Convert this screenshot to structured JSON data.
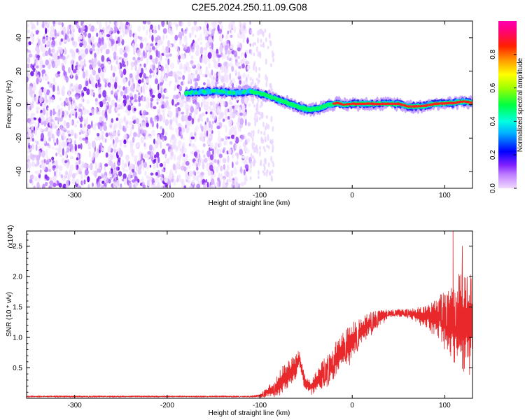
{
  "chart_data": [
    {
      "type": "heatmap",
      "title": "C2E5.2024.250.11.09.G08",
      "xlabel": "Height of straight line (km)",
      "ylabel": "Frequency (Hz)",
      "xlim": [
        -352,
        130
      ],
      "ylim": [
        -50,
        50
      ],
      "x_ticks": [
        "-300",
        "-200",
        "-100",
        "0",
        "100"
      ],
      "y_ticks": [
        "-40",
        "-20",
        "0",
        "20",
        "40"
      ],
      "colorbar": {
        "label": "Normalized spectral amplitude",
        "range": [
          0,
          1
        ],
        "ticks": [
          "0.0",
          "0.2",
          "0.4",
          "0.6",
          "0.8"
        ],
        "colors": [
          "#f0d8ff",
          "#9b30ff",
          "#0000ff",
          "#00e0ff",
          "#00ff40",
          "#c8ff00",
          "#ffcc00",
          "#ff4000",
          "#ff0080",
          "#ff00a0"
        ]
      },
      "noise_region": {
        "x_start": -352,
        "x_end": -110,
        "freq_span": [
          -50,
          50
        ]
      },
      "frequency_track": [
        {
          "x": -180,
          "f": 7
        },
        {
          "x": -150,
          "f": 8
        },
        {
          "x": -125,
          "f": 7
        },
        {
          "x": -110,
          "f": 8
        },
        {
          "x": -95,
          "f": 6
        },
        {
          "x": -85,
          "f": 4
        },
        {
          "x": -75,
          "f": 2
        },
        {
          "x": -65,
          "f": 0
        },
        {
          "x": -55,
          "f": -2
        },
        {
          "x": -45,
          "f": -3
        },
        {
          "x": -35,
          "f": -2
        },
        {
          "x": -25,
          "f": 0
        },
        {
          "x": -15,
          "f": 1
        },
        {
          "x": -10,
          "f": 0
        },
        {
          "x": 0,
          "f": 0.5
        },
        {
          "x": 20,
          "f": 0.5
        },
        {
          "x": 50,
          "f": 0.5
        },
        {
          "x": 60,
          "f": -1
        },
        {
          "x": 75,
          "f": -1
        },
        {
          "x": 90,
          "f": 0.5
        },
        {
          "x": 110,
          "f": 1
        },
        {
          "x": 120,
          "f": 2
        },
        {
          "x": 130,
          "f": 1
        }
      ]
    },
    {
      "type": "line",
      "xlabel": "Height of straight line (km)",
      "ylabel": "SNR (10 * v/v)",
      "y_multiplier": "(x10^4)",
      "xlim": [
        -352,
        130
      ],
      "ylim": [
        0,
        2.75
      ],
      "x_ticks": [
        "-300",
        "-200",
        "-100",
        "0",
        "100"
      ],
      "y_ticks": [
        "0.5",
        "1.0",
        "1.5",
        "2.0",
        "2.5"
      ],
      "line_color": "#e8282a",
      "envelope": [
        {
          "x": -352,
          "mean": 0.03,
          "spread": 0.01
        },
        {
          "x": -200,
          "mean": 0.03,
          "spread": 0.01
        },
        {
          "x": -110,
          "mean": 0.03,
          "spread": 0.01
        },
        {
          "x": -100,
          "mean": 0.04,
          "spread": 0.02
        },
        {
          "x": -85,
          "mean": 0.15,
          "spread": 0.12
        },
        {
          "x": -75,
          "mean": 0.3,
          "spread": 0.2
        },
        {
          "x": -62,
          "mean": 0.5,
          "spread": 0.18
        },
        {
          "x": -57,
          "mean": 0.65,
          "spread": 0.12
        },
        {
          "x": -52,
          "mean": 0.3,
          "spread": 0.1
        },
        {
          "x": -45,
          "mean": 0.18,
          "spread": 0.08
        },
        {
          "x": -35,
          "mean": 0.35,
          "spread": 0.18
        },
        {
          "x": -20,
          "mean": 0.6,
          "spread": 0.25
        },
        {
          "x": 0,
          "mean": 0.95,
          "spread": 0.25
        },
        {
          "x": 20,
          "mean": 1.25,
          "spread": 0.15
        },
        {
          "x": 40,
          "mean": 1.4,
          "spread": 0.05
        },
        {
          "x": 60,
          "mean": 1.4,
          "spread": 0.06
        },
        {
          "x": 80,
          "mean": 1.35,
          "spread": 0.15
        },
        {
          "x": 95,
          "mean": 1.3,
          "spread": 0.35
        },
        {
          "x": 110,
          "mean": 1.3,
          "spread": 0.6
        },
        {
          "x": 120,
          "mean": 1.25,
          "spread": 0.7
        },
        {
          "x": 130,
          "mean": 1.2,
          "spread": 0.7
        }
      ],
      "peaks": [
        {
          "x": 109,
          "y": 2.75
        },
        {
          "x": 119,
          "y": 2.5
        }
      ]
    }
  ]
}
